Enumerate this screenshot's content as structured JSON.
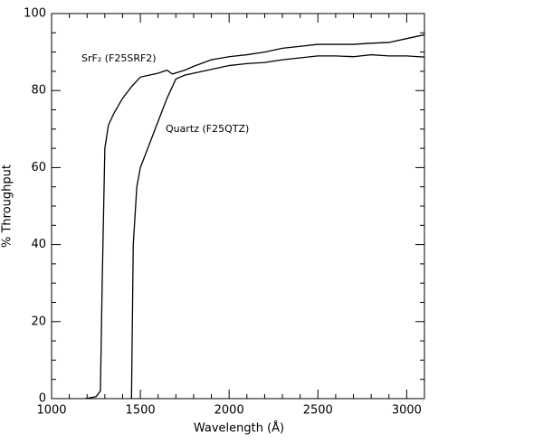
{
  "chart_data": {
    "type": "line",
    "xlabel": "Wavelength (Å)",
    "ylabel": "% Throughput",
    "xlim": [
      1000,
      3100
    ],
    "ylim": [
      0,
      100
    ],
    "xticks": [
      1000,
      1500,
      2000,
      2500,
      3000
    ],
    "yticks": [
      0,
      20,
      40,
      60,
      80,
      100
    ],
    "xticks_minor": [
      1100,
      1200,
      1300,
      1400,
      1600,
      1700,
      1800,
      1900,
      2100,
      2200,
      2300,
      2400,
      2600,
      2700,
      2800,
      2900
    ],
    "yticks_minor": [
      5,
      10,
      15,
      25,
      30,
      35,
      45,
      50,
      55,
      65,
      70,
      75,
      85,
      90,
      95
    ],
    "series": [
      {
        "name": "SrF₂ (F25SRF2)",
        "color": "#000000",
        "x": [
          1190,
          1250,
          1275,
          1285,
          1300,
          1320,
          1350,
          1400,
          1450,
          1500,
          1550,
          1600,
          1650,
          1680,
          1750,
          1800,
          1900,
          2000,
          2100,
          2200,
          2300,
          2400,
          2500,
          2600,
          2700,
          2800,
          2900,
          3000,
          3100
        ],
        "values": [
          0,
          0.5,
          2,
          30,
          65,
          71,
          74,
          78,
          81,
          83.5,
          84,
          84.5,
          85.3,
          84.3,
          85.3,
          86.3,
          88,
          88.8,
          89.3,
          90,
          91,
          91.5,
          92,
          92,
          92,
          92.3,
          92.5,
          93.5,
          94.5
        ]
      },
      {
        "name": "Quartz (F25QTZ)",
        "color": "#000000",
        "x": [
          1450,
          1460,
          1480,
          1500,
          1550,
          1600,
          1650,
          1700,
          1750,
          1800,
          1900,
          2000,
          2100,
          2200,
          2300,
          2400,
          2500,
          2600,
          2700,
          2800,
          2900,
          3000,
          3100
        ],
        "values": [
          0,
          40,
          55,
          60,
          66,
          72,
          78,
          83,
          84,
          84.5,
          85.5,
          86.5,
          87,
          87.3,
          88,
          88.5,
          89,
          89,
          88.8,
          89.3,
          89,
          89,
          88.7
        ]
      }
    ]
  }
}
